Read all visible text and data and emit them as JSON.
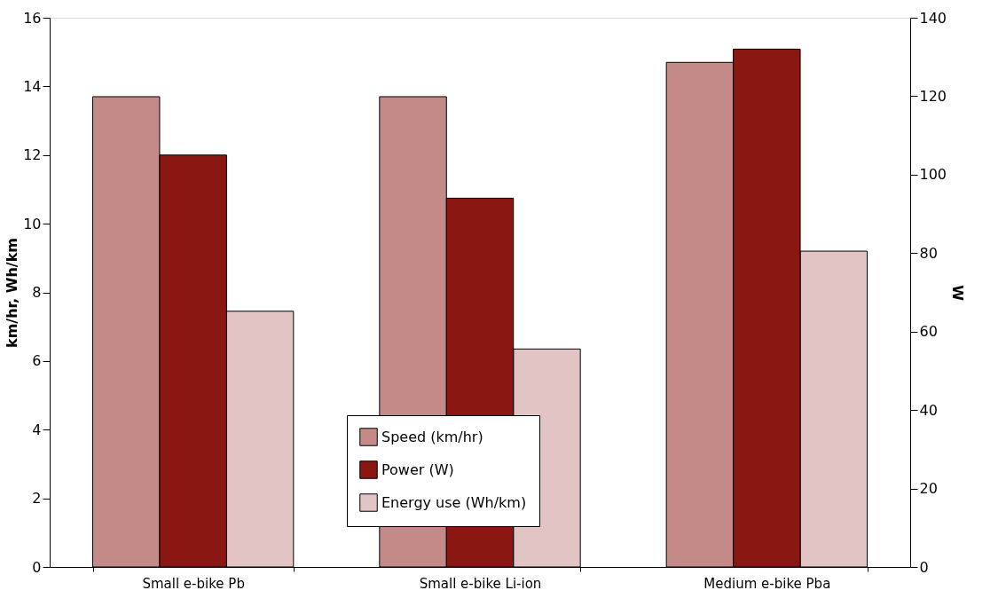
{
  "chart_data": {
    "type": "bar",
    "categories": [
      "Small e-bike Pb",
      "Small e-bike Li-ion",
      "Medium e-bike Pba"
    ],
    "ylabel": "km/hr, Wh/km",
    "y2label": "W",
    "series": [
      {
        "name": "Speed (km/hr)",
        "color": "#c48a88",
        "values": [
          13.7,
          13.7,
          14.7
        ]
      },
      {
        "name": "Power (W)",
        "color": "#8b1713",
        "values": [
          105,
          94,
          132
        ],
        "axis": "y2"
      },
      {
        "name": "Energy use (Wh/km)",
        "color": "#e2c4c5",
        "values": [
          7.45,
          6.35,
          9.2
        ]
      }
    ],
    "ylim": [
      0,
      16
    ],
    "yticks": [
      0,
      2,
      4,
      6,
      8,
      10,
      12,
      14,
      16
    ],
    "y2lim": [
      0,
      140
    ],
    "y2ticks": [
      0,
      20,
      40,
      60,
      80,
      100,
      120,
      140
    ],
    "grid": false,
    "legend": "bottom"
  }
}
